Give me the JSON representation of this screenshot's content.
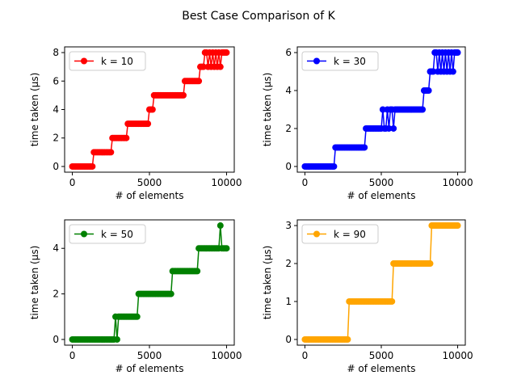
{
  "figure": {
    "title": "Best Case Comparison of K"
  },
  "chart_data": [
    {
      "type": "line",
      "xlabel": "# of elements",
      "ylabel": "time taken (µs)",
      "xlim": [
        -500,
        10500
      ],
      "ylim": [
        -0.4,
        8.4
      ],
      "xticks": [
        0,
        5000,
        10000
      ],
      "xtick_labels": [
        "0",
        "5000",
        "10000"
      ],
      "yticks": [
        0,
        2,
        4,
        6,
        8
      ],
      "ytick_labels": [
        "0",
        "2",
        "4",
        "6",
        "8"
      ],
      "legend_position": "top-left",
      "series": [
        {
          "name": "k = 10",
          "color": "#ff0000",
          "x": [
            0,
            100,
            200,
            300,
            400,
            500,
            600,
            700,
            800,
            900,
            1000,
            1100,
            1200,
            1300,
            1400,
            1500,
            1600,
            1700,
            1800,
            1900,
            2000,
            2100,
            2200,
            2300,
            2400,
            2500,
            2600,
            2700,
            2800,
            2900,
            3000,
            3100,
            3200,
            3300,
            3400,
            3500,
            3600,
            3700,
            3800,
            3900,
            4000,
            4100,
            4200,
            4300,
            4400,
            4500,
            4600,
            4700,
            4800,
            4900,
            5000,
            5100,
            5200,
            5300,
            5400,
            5500,
            5600,
            5700,
            5800,
            5900,
            6000,
            6100,
            6200,
            6300,
            6400,
            6500,
            6600,
            6700,
            6800,
            6900,
            7000,
            7100,
            7200,
            7300,
            7400,
            7500,
            7600,
            7700,
            7800,
            7900,
            8000,
            8100,
            8200,
            8300,
            8400,
            8500,
            8600,
            8700,
            8800,
            8900,
            9000,
            9100,
            9200,
            9300,
            9400,
            9500,
            9600,
            9700,
            9800,
            9900,
            10000
          ],
          "values": [
            0,
            0,
            0,
            0,
            0,
            0,
            0,
            0,
            0,
            0,
            0,
            0,
            0,
            0,
            1,
            1,
            1,
            1,
            1,
            1,
            1,
            1,
            1,
            1,
            1,
            1,
            2,
            2,
            2,
            2,
            2,
            2,
            2,
            2,
            2,
            2,
            3,
            3,
            3,
            3,
            3,
            3,
            3,
            3,
            3,
            3,
            3,
            3,
            3,
            3,
            4,
            4,
            4,
            5,
            5,
            5,
            5,
            5,
            5,
            5,
            5,
            5,
            5,
            5,
            5,
            5,
            5,
            5,
            5,
            5,
            5,
            5,
            5,
            6,
            6,
            6,
            6,
            6,
            6,
            6,
            6,
            6,
            6,
            7,
            7,
            7,
            8,
            8,
            7,
            8,
            7,
            8,
            7,
            8,
            7,
            8,
            7,
            8,
            8,
            8,
            8
          ]
        }
      ]
    },
    {
      "type": "line",
      "xlabel": "# of elements",
      "ylabel": "time taken (µs)",
      "xlim": [
        -500,
        10500
      ],
      "ylim": [
        -0.3,
        6.3
      ],
      "xticks": [
        0,
        5000,
        10000
      ],
      "xtick_labels": [
        "0",
        "5000",
        "10000"
      ],
      "yticks": [
        0,
        2,
        4,
        6
      ],
      "ytick_labels": [
        "0",
        "2",
        "4",
        "6"
      ],
      "legend_position": "top-left",
      "series": [
        {
          "name": "k = 30",
          "color": "#0000ff",
          "x": [
            0,
            100,
            200,
            300,
            400,
            500,
            600,
            700,
            800,
            900,
            1000,
            1100,
            1200,
            1300,
            1400,
            1500,
            1600,
            1700,
            1800,
            1900,
            2000,
            2100,
            2200,
            2300,
            2400,
            2500,
            2600,
            2700,
            2800,
            2900,
            3000,
            3100,
            3200,
            3300,
            3400,
            3500,
            3600,
            3700,
            3800,
            3900,
            4000,
            4100,
            4200,
            4300,
            4400,
            4500,
            4600,
            4700,
            4800,
            4900,
            5000,
            5100,
            5200,
            5300,
            5400,
            5500,
            5600,
            5700,
            5800,
            5900,
            6000,
            6100,
            6200,
            6300,
            6400,
            6500,
            6600,
            6700,
            6800,
            6900,
            7000,
            7100,
            7200,
            7300,
            7400,
            7500,
            7600,
            7700,
            7800,
            7900,
            8000,
            8100,
            8200,
            8300,
            8400,
            8500,
            8600,
            8700,
            8800,
            8900,
            9000,
            9100,
            9200,
            9300,
            9400,
            9500,
            9600,
            9700,
            9800,
            9900,
            10000
          ],
          "values": [
            0,
            0,
            0,
            0,
            0,
            0,
            0,
            0,
            0,
            0,
            0,
            0,
            0,
            0,
            0,
            0,
            0,
            0,
            0,
            0,
            1,
            1,
            1,
            1,
            1,
            1,
            1,
            1,
            1,
            1,
            1,
            1,
            1,
            1,
            1,
            1,
            1,
            1,
            1,
            1,
            2,
            2,
            2,
            2,
            2,
            2,
            2,
            2,
            2,
            2,
            2,
            3,
            2,
            2,
            3,
            2,
            3,
            3,
            2,
            3,
            3,
            3,
            3,
            3,
            3,
            3,
            3,
            3,
            3,
            3,
            3,
            3,
            3,
            3,
            3,
            3,
            3,
            3,
            4,
            4,
            4,
            4,
            5,
            5,
            5,
            6,
            6,
            5,
            6,
            5,
            6,
            5,
            6,
            5,
            6,
            5,
            6,
            5,
            6,
            6,
            6
          ]
        }
      ]
    },
    {
      "type": "line",
      "xlabel": "# of elements",
      "ylabel": "time taken (µs)",
      "xlim": [
        -500,
        10500
      ],
      "ylim": [
        -0.25,
        5.25
      ],
      "xticks": [
        0,
        5000,
        10000
      ],
      "xtick_labels": [
        "0",
        "5000",
        "10000"
      ],
      "yticks": [
        0,
        2,
        4
      ],
      "ytick_labels": [
        "0",
        "2",
        "4"
      ],
      "legend_position": "top-left",
      "series": [
        {
          "name": "k = 50",
          "color": "#008000",
          "x": [
            0,
            100,
            200,
            300,
            400,
            500,
            600,
            700,
            800,
            900,
            1000,
            1100,
            1200,
            1300,
            1400,
            1500,
            1600,
            1700,
            1800,
            1900,
            2000,
            2100,
            2200,
            2300,
            2400,
            2500,
            2600,
            2700,
            2800,
            2900,
            3000,
            3100,
            3200,
            3300,
            3400,
            3500,
            3600,
            3700,
            3800,
            3900,
            4000,
            4100,
            4200,
            4300,
            4400,
            4500,
            4600,
            4700,
            4800,
            4900,
            5000,
            5100,
            5200,
            5300,
            5400,
            5500,
            5600,
            5700,
            5800,
            5900,
            6000,
            6100,
            6200,
            6300,
            6400,
            6500,
            6600,
            6700,
            6800,
            6900,
            7000,
            7100,
            7200,
            7300,
            7400,
            7500,
            7600,
            7700,
            7800,
            7900,
            8000,
            8100,
            8200,
            8300,
            8400,
            8500,
            8600,
            8700,
            8800,
            8900,
            9000,
            9100,
            9200,
            9300,
            9400,
            9500,
            9600,
            9700,
            9800,
            9900,
            10000
          ],
          "values": [
            0,
            0,
            0,
            0,
            0,
            0,
            0,
            0,
            0,
            0,
            0,
            0,
            0,
            0,
            0,
            0,
            0,
            0,
            0,
            0,
            0,
            0,
            0,
            0,
            0,
            0,
            0,
            0,
            1,
            0,
            1,
            1,
            1,
            1,
            1,
            1,
            1,
            1,
            1,
            1,
            1,
            1,
            1,
            2,
            2,
            2,
            2,
            2,
            2,
            2,
            2,
            2,
            2,
            2,
            2,
            2,
            2,
            2,
            2,
            2,
            2,
            2,
            2,
            2,
            2,
            3,
            3,
            3,
            3,
            3,
            3,
            3,
            3,
            3,
            3,
            3,
            3,
            3,
            3,
            3,
            3,
            3,
            4,
            4,
            4,
            4,
            4,
            4,
            4,
            4,
            4,
            4,
            4,
            4,
            4,
            4,
            5,
            4,
            4,
            4,
            4
          ]
        }
      ]
    },
    {
      "type": "line",
      "xlabel": "# of elements",
      "ylabel": "time taken (µs)",
      "xlim": [
        -500,
        10500
      ],
      "ylim": [
        -0.15,
        3.15
      ],
      "xticks": [
        0,
        5000,
        10000
      ],
      "xtick_labels": [
        "0",
        "5000",
        "10000"
      ],
      "yticks": [
        0,
        1,
        2,
        3
      ],
      "ytick_labels": [
        "0",
        "1",
        "2",
        "3"
      ],
      "legend_position": "top-left",
      "series": [
        {
          "name": "k = 90",
          "color": "#ffa500",
          "x": [
            0,
            100,
            200,
            300,
            400,
            500,
            600,
            700,
            800,
            900,
            1000,
            1100,
            1200,
            1300,
            1400,
            1500,
            1600,
            1700,
            1800,
            1900,
            2000,
            2100,
            2200,
            2300,
            2400,
            2500,
            2600,
            2700,
            2800,
            2900,
            3000,
            3100,
            3200,
            3300,
            3400,
            3500,
            3600,
            3700,
            3800,
            3900,
            4000,
            4100,
            4200,
            4300,
            4400,
            4500,
            4600,
            4700,
            4800,
            4900,
            5000,
            5100,
            5200,
            5300,
            5400,
            5500,
            5600,
            5700,
            5800,
            5900,
            6000,
            6100,
            6200,
            6300,
            6400,
            6500,
            6600,
            6700,
            6800,
            6900,
            7000,
            7100,
            7200,
            7300,
            7400,
            7500,
            7600,
            7700,
            7800,
            7900,
            8000,
            8100,
            8200,
            8300,
            8400,
            8500,
            8600,
            8700,
            8800,
            8900,
            9000,
            9100,
            9200,
            9300,
            9400,
            9500,
            9600,
            9700,
            9800,
            9900,
            10000
          ],
          "values": [
            0,
            0,
            0,
            0,
            0,
            0,
            0,
            0,
            0,
            0,
            0,
            0,
            0,
            0,
            0,
            0,
            0,
            0,
            0,
            0,
            0,
            0,
            0,
            0,
            0,
            0,
            0,
            0,
            0,
            1,
            1,
            1,
            1,
            1,
            1,
            1,
            1,
            1,
            1,
            1,
            1,
            1,
            1,
            1,
            1,
            1,
            1,
            1,
            1,
            1,
            1,
            1,
            1,
            1,
            1,
            1,
            1,
            1,
            2,
            2,
            2,
            2,
            2,
            2,
            2,
            2,
            2,
            2,
            2,
            2,
            2,
            2,
            2,
            2,
            2,
            2,
            2,
            2,
            2,
            2,
            2,
            2,
            2,
            3,
            3,
            3,
            3,
            3,
            3,
            3,
            3,
            3,
            3,
            3,
            3,
            3,
            3,
            3,
            3,
            3,
            3
          ]
        }
      ]
    }
  ]
}
